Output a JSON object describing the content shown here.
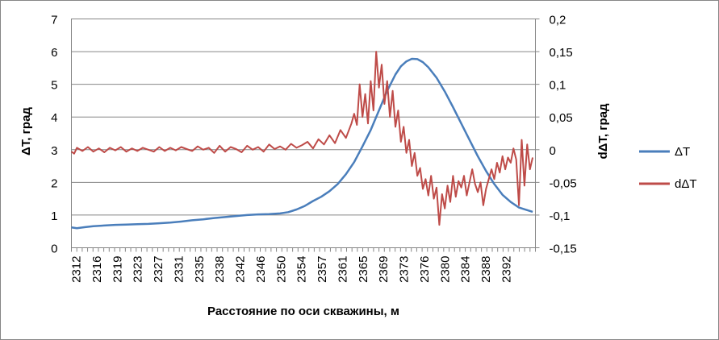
{
  "chart_data": {
    "type": "line",
    "xlabel": "Расстояние по оси скважины, м",
    "ylabel_left": "ΔT, град",
    "ylabel_right": "dΔT,  град",
    "ylim_left": [
      0,
      7
    ],
    "ylim_right": [
      -0.15,
      0.2
    ],
    "yticks_left": [
      "0",
      "1",
      "2",
      "3",
      "4",
      "5",
      "6",
      "7"
    ],
    "yticks_right": [
      "-0,15",
      "-0,1",
      "-0,05",
      "0",
      "0,05",
      "0,1",
      "0,15",
      "0,2"
    ],
    "xlim": [
      2311,
      2395.5
    ],
    "xticks": [
      "2312",
      "2316",
      "2319",
      "2323",
      "2327",
      "2331",
      "2335",
      "2338",
      "2342",
      "2346",
      "2350",
      "2354",
      "2357",
      "2361",
      "2365",
      "2369",
      "2373",
      "2376",
      "2380",
      "2384",
      "2388",
      "2392"
    ],
    "grid": "horizontal",
    "legend_position": "right",
    "series": [
      {
        "name": "ΔT",
        "axis": "left",
        "color": "#4a7ebb",
        "x": [
          2311.0,
          2312.0,
          2313.5,
          2315.0,
          2317.0,
          2319.0,
          2321.0,
          2323.0,
          2325.0,
          2327.0,
          2329.0,
          2331.0,
          2333.0,
          2335.0,
          2337.0,
          2339.0,
          2341.0,
          2343.0,
          2345.0,
          2347.0,
          2349.0,
          2350.5,
          2352.0,
          2353.5,
          2355.0,
          2356.5,
          2358.0,
          2359.5,
          2361.0,
          2362.5,
          2364.0,
          2365.5,
          2367.0,
          2368.5,
          2370.0,
          2371.0,
          2372.0,
          2373.0,
          2374.0,
          2375.0,
          2376.0,
          2377.5,
          2379.0,
          2380.5,
          2382.0,
          2383.5,
          2385.0,
          2386.5,
          2388.0,
          2389.5,
          2391.0,
          2392.5,
          2394.0,
          2395.0
        ],
        "y": [
          0.62,
          0.6,
          0.63,
          0.66,
          0.68,
          0.7,
          0.71,
          0.72,
          0.73,
          0.75,
          0.77,
          0.8,
          0.84,
          0.87,
          0.91,
          0.94,
          0.97,
          1.0,
          1.02,
          1.03,
          1.05,
          1.09,
          1.17,
          1.28,
          1.43,
          1.56,
          1.73,
          1.95,
          2.25,
          2.62,
          3.1,
          3.6,
          4.2,
          4.8,
          5.3,
          5.55,
          5.7,
          5.78,
          5.77,
          5.68,
          5.52,
          5.2,
          4.78,
          4.3,
          3.8,
          3.3,
          2.8,
          2.35,
          1.95,
          1.62,
          1.4,
          1.23,
          1.15,
          1.1
        ]
      },
      {
        "name": "dΔT",
        "axis": "right",
        "color": "#be4b48",
        "x": [
          2311.0,
          2311.5,
          2312.0,
          2313.0,
          2314.0,
          2315.0,
          2316.0,
          2317.0,
          2318.0,
          2319.0,
          2320.0,
          2321.0,
          2322.0,
          2323.0,
          2324.0,
          2325.0,
          2326.0,
          2327.0,
          2328.0,
          2329.0,
          2330.0,
          2331.0,
          2332.0,
          2333.0,
          2334.0,
          2335.0,
          2336.0,
          2337.0,
          2338.0,
          2339.0,
          2340.0,
          2341.0,
          2342.0,
          2343.0,
          2344.0,
          2345.0,
          2346.0,
          2347.0,
          2348.0,
          2349.0,
          2350.0,
          2351.0,
          2352.0,
          2353.0,
          2354.0,
          2355.0,
          2356.0,
          2357.0,
          2358.0,
          2359.0,
          2360.0,
          2361.0,
          2362.0,
          2362.5,
          2363.0,
          2363.5,
          2364.0,
          2364.5,
          2365.0,
          2365.5,
          2366.0,
          2366.5,
          2367.0,
          2367.5,
          2368.0,
          2368.5,
          2369.0,
          2369.5,
          2370.0,
          2370.5,
          2371.0,
          2371.5,
          2372.0,
          2372.5,
          2373.0,
          2373.5,
          2374.0,
          2374.5,
          2375.0,
          2375.5,
          2376.0,
          2376.5,
          2377.0,
          2377.5,
          2378.0,
          2378.5,
          2379.0,
          2379.5,
          2380.0,
          2380.5,
          2381.0,
          2381.5,
          2382.0,
          2382.5,
          2383.0,
          2383.5,
          2384.0,
          2384.5,
          2385.0,
          2385.5,
          2386.0,
          2386.5,
          2387.0,
          2387.5,
          2388.0,
          2388.5,
          2389.0,
          2389.5,
          2390.0,
          2390.5,
          2391.0,
          2391.5,
          2392.0,
          2392.5,
          2393.0,
          2393.5,
          2394.0,
          2394.5,
          2395.0
        ],
        "y": [
          -0.003,
          -0.006,
          0.003,
          -0.002,
          0.004,
          -0.003,
          0.002,
          -0.004,
          0.003,
          -0.001,
          0.004,
          -0.003,
          0.002,
          -0.002,
          0.003,
          0.0,
          -0.003,
          0.004,
          -0.002,
          0.003,
          -0.001,
          0.004,
          0.001,
          -0.002,
          0.005,
          0.0,
          0.003,
          -0.005,
          0.006,
          -0.003,
          0.004,
          0.001,
          -0.004,
          0.006,
          0.0,
          0.004,
          -0.003,
          0.008,
          0.001,
          0.005,
          0.0,
          0.009,
          0.003,
          0.007,
          0.012,
          0.002,
          0.016,
          0.008,
          0.022,
          0.01,
          0.03,
          0.018,
          0.04,
          0.055,
          0.038,
          0.1,
          0.05,
          0.085,
          0.04,
          0.105,
          0.06,
          0.15,
          0.095,
          0.13,
          0.07,
          0.105,
          0.05,
          0.09,
          0.035,
          0.06,
          0.012,
          0.035,
          -0.005,
          0.015,
          -0.025,
          -0.005,
          -0.04,
          -0.028,
          -0.06,
          -0.045,
          -0.07,
          -0.04,
          -0.075,
          -0.058,
          -0.115,
          -0.068,
          -0.09,
          -0.055,
          -0.08,
          -0.04,
          -0.072,
          -0.048,
          -0.058,
          -0.04,
          -0.07,
          -0.05,
          -0.03,
          -0.052,
          -0.065,
          -0.05,
          -0.085,
          -0.06,
          -0.045,
          -0.03,
          -0.045,
          -0.02,
          -0.035,
          -0.01,
          -0.03,
          -0.012,
          -0.02,
          0.002,
          -0.015,
          -0.085,
          0.015,
          -0.055,
          0.008,
          -0.03,
          -0.012
        ]
      }
    ]
  }
}
